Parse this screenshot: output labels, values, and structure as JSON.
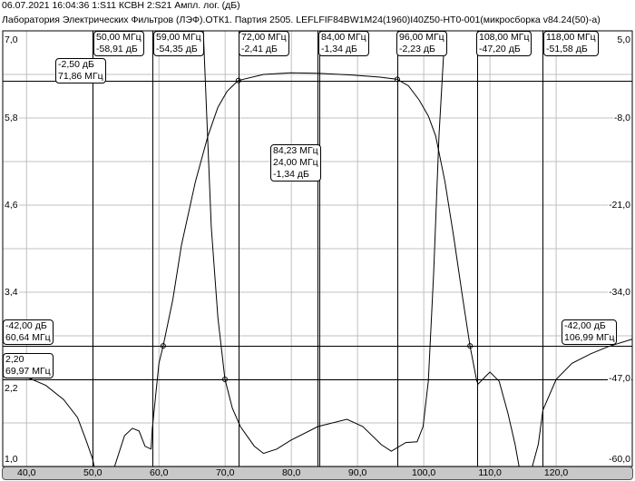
{
  "header": {
    "line1": "06.07.2021     16:04:36    1:S11 КСВН     2:S21 Ампл. лог.  (дБ)",
    "line2": "Лаборатория Электрических Фильтров (ЛЭФ).ОТК1. Партия 2505. LEFLFIF84BW1M24(1960)I40Z50-HT0-001(микросборка v84.24(50)-а)"
  },
  "axis_labels": {
    "left": [
      "7,0",
      "5,8",
      "4,6",
      "3,4",
      "2,2",
      "1,0"
    ],
    "right": [
      "5,0",
      "-8,0",
      "-21,0",
      "-34,0",
      "-47,0",
      "-60,0"
    ],
    "bottom": [
      "40,0",
      "50,0",
      "60,0",
      "70,0",
      "80,0",
      "90,0",
      "100,0",
      "110,0",
      "120,0"
    ]
  },
  "markers": [
    {
      "freq": "50,00 МГц",
      "value": "-58,91 дБ"
    },
    {
      "freq": "59,00 МГц",
      "value": "-54,35 дБ"
    },
    {
      "freq": "72,00 МГц",
      "value": "-2,41 дБ"
    },
    {
      "freq": "84,00 МГц",
      "value": "-1,34 дБ"
    },
    {
      "freq": "96,00 МГц",
      "value": "-2,23 дБ"
    },
    {
      "freq": "108,00 МГц",
      "value": "-47,20 дБ"
    },
    {
      "freq": "118,00 МГц",
      "value": "-51,58 дБ"
    }
  ],
  "level_markers": [
    {
      "line1": "-2,50 дБ",
      "line2": "71,86 МГц"
    },
    {
      "line1": "-42,00 дБ",
      "line2": "60,64 МГц"
    },
    {
      "line1": "2,20",
      "line2": "69,97 МГц"
    },
    {
      "line1": "-42,00 дБ",
      "line2": "106,99 МГц"
    }
  ],
  "band_info": {
    "center": "84,23 МГц",
    "bandwidth": "24,00 МГц",
    "loss": "-1,34 дБ"
  },
  "chart_data": {
    "type": "line",
    "xlabel": "",
    "x_range_mhz": [
      36.4,
      131.5
    ],
    "x_ticks": [
      40,
      50,
      60,
      70,
      80,
      90,
      100,
      110,
      120
    ],
    "y_left": {
      "range": [
        1.0,
        7.0
      ],
      "ticks": [
        7.0,
        5.8,
        4.6,
        3.4,
        2.2,
        1.0
      ]
    },
    "y_right": {
      "range": [
        -60,
        5
      ],
      "ticks": [
        5,
        -8,
        -21,
        -34,
        -47,
        -60
      ]
    },
    "grid": true,
    "series": [
      {
        "name": "1:S11 КСВН",
        "axis": "left",
        "points": [
          [
            66.7,
            7.0
          ],
          [
            67.9,
            4.3
          ],
          [
            68.9,
            3.05
          ],
          [
            69.97,
            2.2
          ],
          [
            71.1,
            1.8
          ],
          [
            72.3,
            1.55
          ],
          [
            74.4,
            1.28
          ],
          [
            75.8,
            1.18
          ],
          [
            77.8,
            1.24
          ],
          [
            79.9,
            1.36
          ],
          [
            84.0,
            1.55
          ],
          [
            88.4,
            1.65
          ],
          [
            90.8,
            1.55
          ],
          [
            93.6,
            1.3
          ],
          [
            95.1,
            1.21
          ],
          [
            97.3,
            1.33
          ],
          [
            99.0,
            1.34
          ],
          [
            99.9,
            1.55
          ],
          [
            100.7,
            2.18
          ],
          [
            101.5,
            3.68
          ],
          [
            102.3,
            5.55
          ],
          [
            103.2,
            7.0
          ]
        ]
      },
      {
        "name": "2:S21 Ампл. лог. (дБ)",
        "axis": "right",
        "points": [
          [
            36.4,
            -46.5
          ],
          [
            40.1,
            -46.7
          ],
          [
            42.9,
            -47.9
          ],
          [
            45.6,
            -50
          ],
          [
            47.7,
            -52.7
          ],
          [
            49.0,
            -56.1
          ],
          [
            50.0,
            -58.91
          ],
          [
            50.4,
            -61
          ],
          [
            53.0,
            -61
          ],
          [
            53.3,
            -60
          ],
          [
            54.8,
            -55.4
          ],
          [
            56.0,
            -54.3
          ],
          [
            57.0,
            -54.7
          ],
          [
            57.9,
            -57
          ],
          [
            58.8,
            -57.4
          ],
          [
            59.0,
            -54.35
          ],
          [
            60.0,
            -44.6
          ],
          [
            60.64,
            -42
          ],
          [
            62.1,
            -35.1
          ],
          [
            63.4,
            -27
          ],
          [
            65.5,
            -17.5
          ],
          [
            67.4,
            -10.7
          ],
          [
            68.9,
            -6.4
          ],
          [
            70.3,
            -4
          ],
          [
            71.86,
            -2.5
          ],
          [
            72.0,
            -2.41
          ],
          [
            75.8,
            -1.5
          ],
          [
            79.9,
            -1.25
          ],
          [
            84.0,
            -1.34
          ],
          [
            89.3,
            -1.6
          ],
          [
            93.4,
            -1.9
          ],
          [
            96.0,
            -2.23
          ],
          [
            97.7,
            -3.2
          ],
          [
            99.3,
            -5.3
          ],
          [
            100.7,
            -7.7
          ],
          [
            101.8,
            -10.7
          ],
          [
            103.2,
            -17.5
          ],
          [
            104.5,
            -25.6
          ],
          [
            105.9,
            -35
          ],
          [
            106.99,
            -42
          ],
          [
            108.0,
            -47.2
          ],
          [
            108.2,
            -47.7
          ],
          [
            109.3,
            -46.6
          ],
          [
            110.0,
            -45.9
          ],
          [
            111.4,
            -47.3
          ],
          [
            112.7,
            -52
          ],
          [
            113.8,
            -56.7
          ],
          [
            114.4,
            -60
          ],
          [
            114.8,
            -61
          ],
          [
            116.1,
            -61
          ],
          [
            116.4,
            -60
          ],
          [
            117.3,
            -56.7
          ],
          [
            118.0,
            -51.58
          ],
          [
            120.0,
            -47
          ],
          [
            122.4,
            -44.6
          ],
          [
            125.2,
            -43.2
          ],
          [
            127.9,
            -42.1
          ],
          [
            131.5,
            -41
          ]
        ]
      }
    ],
    "marker_freqs": [
      50,
      59,
      72,
      84,
      84.23,
      96,
      108,
      118
    ],
    "reference_levels": {
      "s21_db": [
        -2.5,
        -42
      ],
      "swr": [
        2.2
      ]
    },
    "marker_points": [
      {
        "x": 72,
        "y": -2.41,
        "axis": "right"
      },
      {
        "x": 96,
        "y": -2.23,
        "axis": "right"
      },
      {
        "x": 60.64,
        "y": -42,
        "axis": "right"
      },
      {
        "x": 106.99,
        "y": -42,
        "axis": "right"
      },
      {
        "x": 69.97,
        "y": 2.2,
        "axis": "left"
      }
    ],
    "colors": {
      "trace": "#000000",
      "grid": "#c0c0c0",
      "axis_bar": "#c8c8c8"
    }
  }
}
